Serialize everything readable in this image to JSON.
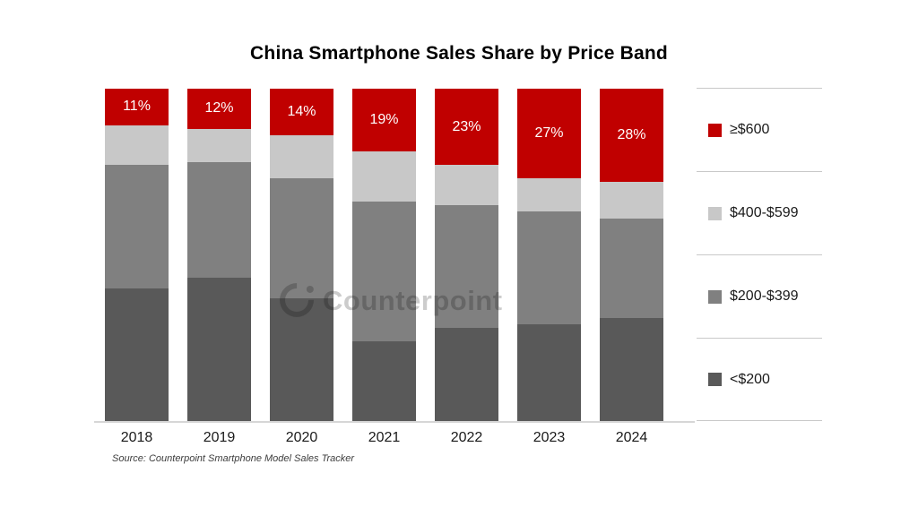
{
  "chart": {
    "title": "China Smartphone Sales Share by Price Band",
    "source_note": "Source: Counterpoint Smartphone Model Sales Tracker",
    "watermark": "Counterpoint"
  },
  "chart_data": {
    "type": "bar",
    "stacked": true,
    "unit": "percent",
    "title": "China Smartphone Sales Share by Price Band",
    "categories": [
      "2018",
      "2019",
      "2020",
      "2021",
      "2022",
      "2023",
      "2024"
    ],
    "series": [
      {
        "name": "<$200",
        "color": "#595959",
        "values": [
          40,
          43,
          37,
          24,
          28,
          29,
          31
        ]
      },
      {
        "name": "$200-$399",
        "color": "#808080",
        "values": [
          37,
          35,
          36,
          42,
          37,
          34,
          30
        ]
      },
      {
        "name": "$400-$599",
        "color": "#c8c8c8",
        "values": [
          12,
          10,
          13,
          15,
          12,
          10,
          11
        ]
      },
      {
        "name": "≥$600",
        "color": "#c00000",
        "values": [
          11,
          12,
          14,
          19,
          23,
          27,
          28
        ],
        "labels": [
          "11%",
          "12%",
          "14%",
          "19%",
          "23%",
          "27%",
          "28%"
        ]
      }
    ],
    "ylim": [
      0,
      100
    ],
    "grid": false,
    "legend_position": "right",
    "accent_color": "#c00000",
    "axis_line_color": "#d6d6d6"
  },
  "legend": {
    "items": [
      {
        "label": "≥$600",
        "color": "#c00000"
      },
      {
        "label": "$400-$599",
        "color": "#c8c8c8"
      },
      {
        "label": "$200-$399",
        "color": "#808080"
      },
      {
        "label": "<$200",
        "color": "#595959"
      }
    ]
  }
}
